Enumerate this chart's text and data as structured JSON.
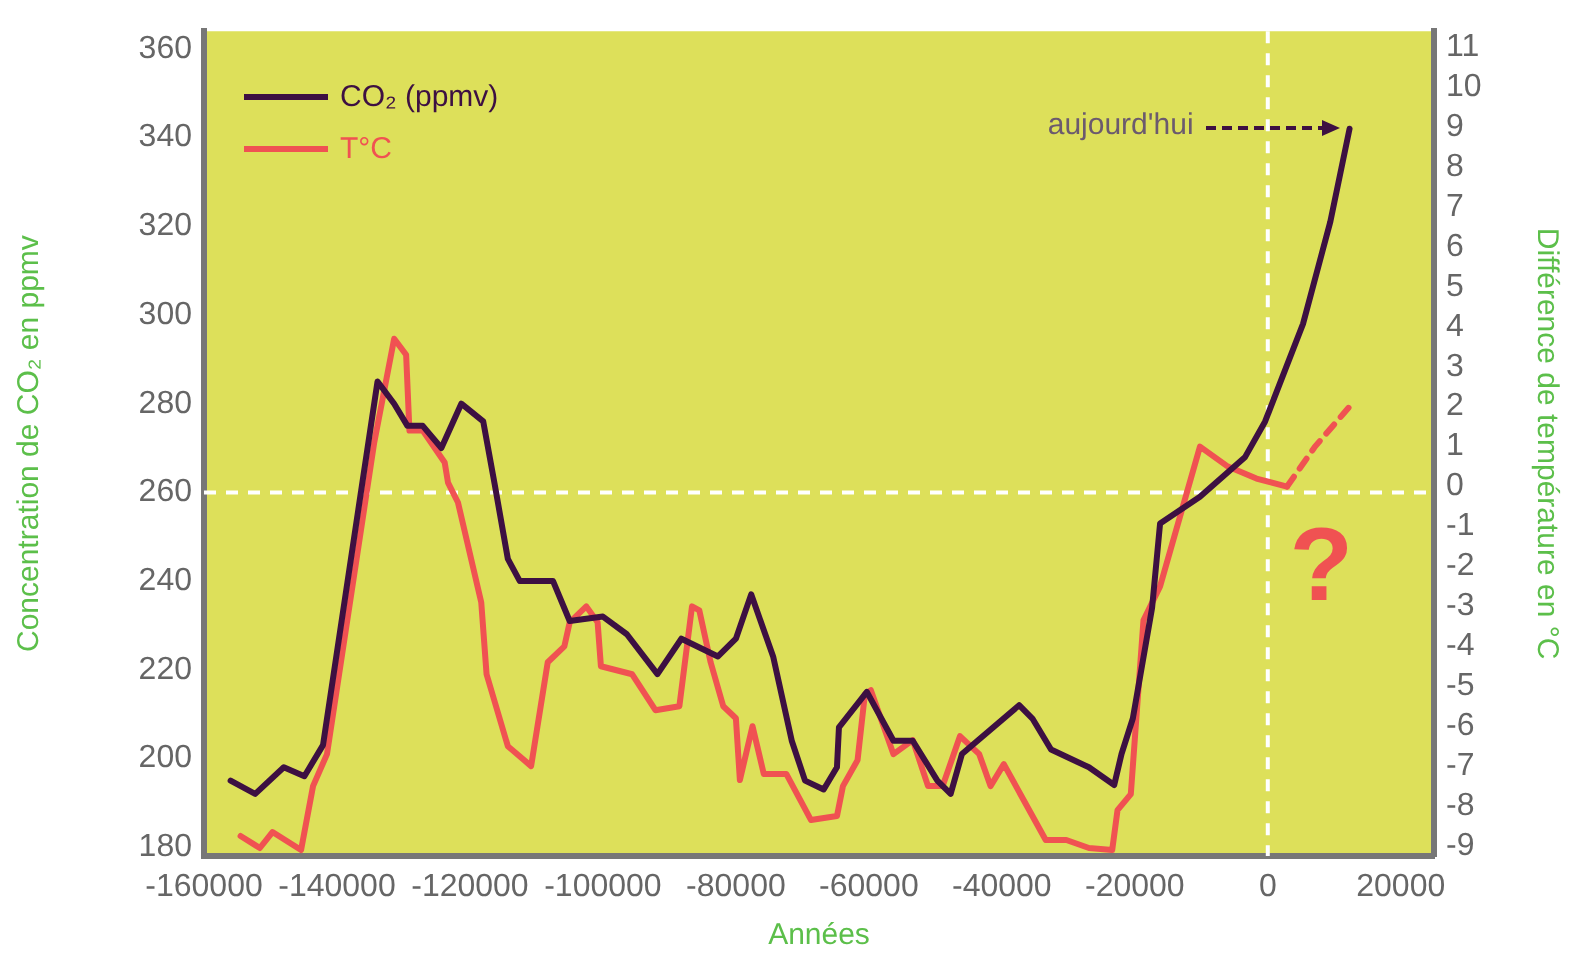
{
  "chart_data": {
    "type": "line",
    "xlabel": "Années",
    "ylabel": "Concentration de CO₂ en ppmv",
    "y2label": "Différence de température en °C",
    "xlim": [
      -160000,
      25000
    ],
    "xticks": [
      -160000,
      -140000,
      -120000,
      -100000,
      -80000,
      -60000,
      -40000,
      -20000,
      0,
      20000
    ],
    "ylim": [
      178,
      364
    ],
    "yticks": [
      180,
      200,
      220,
      240,
      260,
      280,
      300,
      320,
      340,
      360
    ],
    "y2lim": [
      -9.25,
      11.4
    ],
    "y2ticks": [
      -9,
      -8,
      -7,
      -6,
      -5,
      -4,
      -3,
      -2,
      -1,
      0,
      1,
      2,
      3,
      4,
      5,
      6,
      7,
      8,
      9,
      10,
      11
    ],
    "marker": "none",
    "legend": "top left",
    "series": [
      {
        "name": "CO₂ (ppmv)",
        "color": "#3d1042",
        "axis": "y",
        "line_style": "solid",
        "x": [
          -156000,
          -152300,
          -148000,
          -144900,
          -142100,
          -133900,
          -131400,
          -129400,
          -127100,
          -124300,
          -121300,
          -118000,
          -116300,
          -114300,
          -112500,
          -107500,
          -105000,
          -100000,
          -96400,
          -91800,
          -88200,
          -82700,
          -80000,
          -77700,
          -74400,
          -71600,
          -69600,
          -66800,
          -64800,
          -64500,
          -60300,
          -56300,
          -53400,
          -49700,
          -47700,
          -46000,
          -37400,
          -35400,
          -32600,
          -26900,
          -23100,
          -22000,
          -20300,
          -17400,
          -16200,
          -10200,
          -3400,
          -400,
          5300,
          9400,
          12300
        ],
        "values": [
          195,
          192,
          198,
          196,
          203,
          285,
          280,
          275,
          275,
          270,
          280,
          276,
          262,
          245,
          240,
          240,
          231,
          232,
          228,
          219,
          227,
          223,
          227,
          237,
          223,
          204,
          195,
          193,
          198,
          207,
          215,
          204,
          204,
          195,
          192,
          201,
          212,
          209,
          202,
          198,
          194,
          201,
          209,
          234,
          253,
          259,
          268,
          276,
          298,
          321,
          342
        ]
      },
      {
        "name": "T°C",
        "color": "#f05252",
        "axis": "y2",
        "line_style": "solid",
        "x": [
          -154500,
          -151600,
          -149700,
          -145400,
          -143600,
          -141500,
          -134400,
          -131400,
          -129600,
          -129100,
          -127100,
          -123800,
          -123300,
          -121800,
          -118300,
          -117500,
          -114300,
          -110800,
          -108300,
          -105800,
          -105000,
          -102500,
          -100800,
          -100300,
          -95600,
          -92100,
          -88500,
          -86600,
          -85500,
          -83800,
          -81900,
          -80000,
          -79400,
          -77500,
          -75800,
          -72400,
          -68700,
          -64800,
          -63900,
          -61700,
          -60600,
          -59700,
          -56300,
          -53400,
          -51100,
          -48900,
          -46300,
          -43400,
          -41700,
          -39700,
          -33400,
          -30300,
          -26900,
          -23400,
          -22600,
          -20600,
          -18700,
          -16200,
          -10200,
          -6000,
          -1700,
          2900
        ],
        "values": [
          -8.75,
          -9.05,
          -8.65,
          -9.1,
          -7.5,
          -6.7,
          1.1,
          3.7,
          3.3,
          1.4,
          1.4,
          0.6,
          0.1,
          -0.4,
          -2.9,
          -4.7,
          -6.5,
          -7.0,
          -4.4,
          -4.0,
          -3.4,
          -3.0,
          -3.4,
          -4.5,
          -4.7,
          -5.6,
          -5.5,
          -3.0,
          -3.1,
          -4.4,
          -5.5,
          -5.8,
          -7.35,
          -6.0,
          -7.2,
          -7.2,
          -8.35,
          -8.25,
          -7.5,
          -6.85,
          -5.2,
          -5.1,
          -6.7,
          -6.35,
          -7.5,
          -7.5,
          -6.25,
          -6.7,
          -7.5,
          -6.95,
          -8.85,
          -8.85,
          -9.05,
          -9.1,
          -8.1,
          -7.7,
          -3.35,
          -2.5,
          1.0,
          0.5,
          0.2,
          0.0
        ]
      },
      {
        "color": "#f05252",
        "axis": "y2",
        "line_style": "dashed",
        "x": [
          2900,
          7100,
          12300
        ],
        "values": [
          0.0,
          1.0,
          2.0
        ]
      }
    ],
    "ref_lines": [
      {
        "axis": "x",
        "value": 0,
        "color": "#ffffff",
        "line_style": "dashed"
      },
      {
        "axis": "y",
        "value": 260,
        "color": "#ffffff",
        "line_style": "dashed"
      }
    ],
    "annotations": [
      "aujourd'hui",
      "?"
    ]
  }
}
